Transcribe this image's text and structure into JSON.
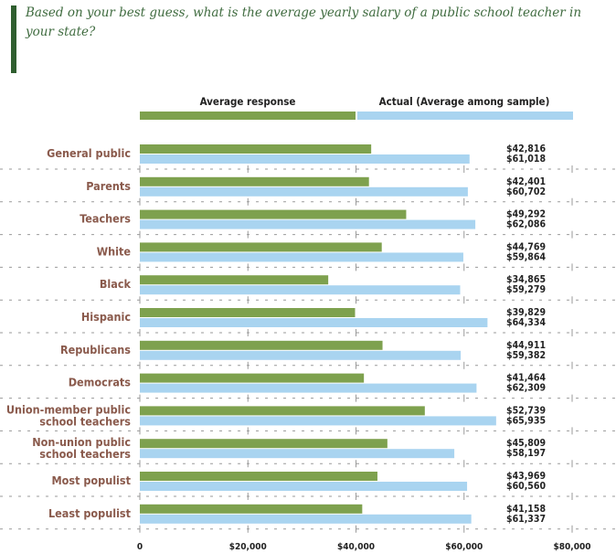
{
  "question": "Based on your best guess, what is the average yearly salary of a public school teacher in your state?",
  "colors": {
    "average_response": "#7ea14e",
    "actual": "#a9d4f0",
    "category_label": "#8a5a4c",
    "question_text": "#3f6b3f",
    "accent_bar": "#2f5e2f"
  },
  "chart_data": {
    "type": "bar",
    "orientation": "horizontal",
    "title": "",
    "xlabel": "",
    "ylabel": "",
    "xlim": [
      0,
      80000
    ],
    "grid": true,
    "legend_position": "top",
    "categories": [
      "General public",
      "Parents",
      "Teachers",
      "White",
      "Black",
      "Hispanic",
      "Republicans",
      "Democrats",
      "Union-member public school teachers",
      "Non-union public school teachers",
      "Most populist",
      "Least populist"
    ],
    "series": [
      {
        "name": "Average response",
        "values": [
          42816,
          42401,
          49292,
          44769,
          34865,
          39829,
          44911,
          41464,
          52739,
          45809,
          43969,
          41158
        ],
        "labels": [
          "$42,816",
          "$42,401",
          "$49,292",
          "$44,769",
          "$34,865",
          "$39,829",
          "$44,911",
          "$41,464",
          "$52,739",
          "$45,809",
          "$43,969",
          "$41,158"
        ]
      },
      {
        "name": "Actual (Average among sample)",
        "values": [
          61018,
          60702,
          62086,
          59864,
          59279,
          64334,
          59382,
          62309,
          65935,
          58197,
          60560,
          61337
        ],
        "labels": [
          "$61,018",
          "$60,702",
          "$62,086",
          "$59,864",
          "$59,279",
          "$64,334",
          "$59,382",
          "$62,309",
          "$65,935",
          "$58,197",
          "$60,560",
          "$61,337"
        ]
      }
    ],
    "x_ticks": [
      {
        "value": 0,
        "label": "0"
      },
      {
        "value": 20000,
        "label": "$20,000"
      },
      {
        "value": 40000,
        "label": "$40,000"
      },
      {
        "value": 60000,
        "label": "$60,000"
      },
      {
        "value": 80000,
        "label": "$80,000"
      }
    ]
  }
}
